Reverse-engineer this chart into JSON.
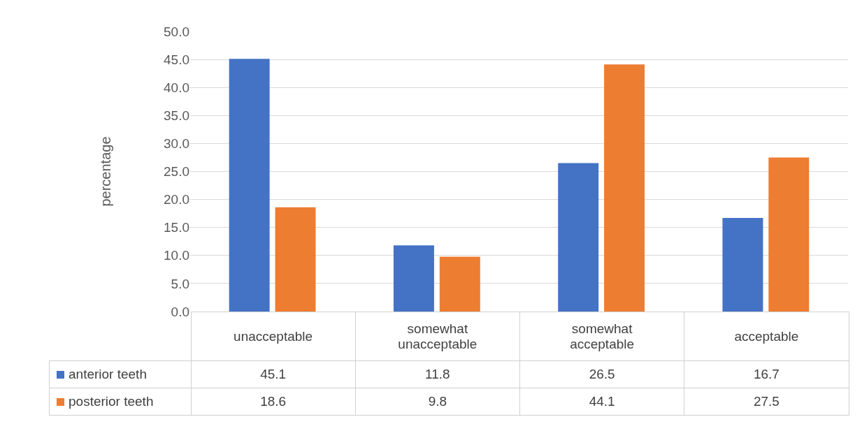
{
  "chart_data": {
    "type": "bar",
    "ylabel": "percentage",
    "categories": [
      "unacceptable",
      "somewhat unacceptable",
      "somewhat acceptable",
      "acceptable"
    ],
    "series": [
      {
        "name": "anterior teeth",
        "color": "#4472c4",
        "values": [
          45.1,
          11.8,
          26.5,
          16.7
        ]
      },
      {
        "name": "posterior teeth",
        "color": "#ed7d31",
        "values": [
          18.6,
          9.8,
          44.1,
          27.5
        ]
      }
    ],
    "ylim": [
      0,
      50
    ],
    "yticks": [
      {
        "value": 0,
        "label": "0.0"
      },
      {
        "value": 5,
        "label": "5.0"
      },
      {
        "value": 10,
        "label": "10.0"
      },
      {
        "value": 15,
        "label": "15.0"
      },
      {
        "value": 20,
        "label": "20.0"
      },
      {
        "value": 25,
        "label": "25.0"
      },
      {
        "value": 30,
        "label": "30.0"
      },
      {
        "value": 35,
        "label": "35.0"
      },
      {
        "value": 40,
        "label": "40.0"
      },
      {
        "value": 45,
        "label": "45.0"
      },
      {
        "value": 50,
        "label": "50.0"
      }
    ],
    "grid": "y",
    "legend": "bottom",
    "data_labels": true
  }
}
